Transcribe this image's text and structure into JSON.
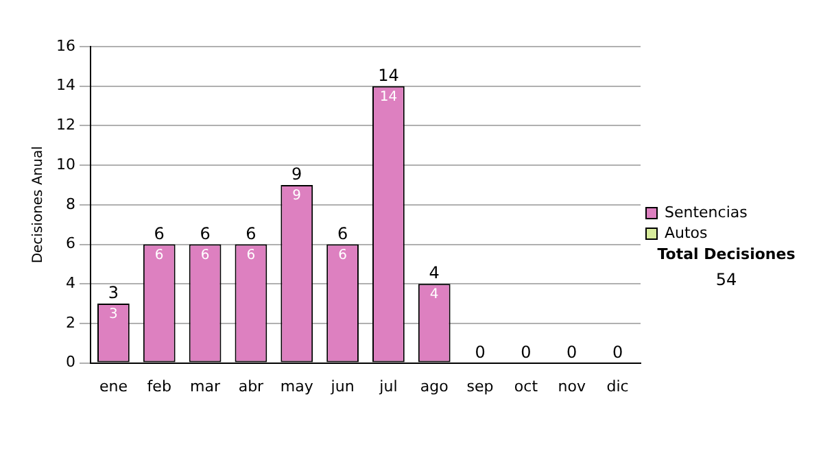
{
  "chart_data": {
    "type": "bar",
    "stacked": true,
    "ylabel": "Decisiones Anual",
    "categories": [
      "ene",
      "feb",
      "mar",
      "abr",
      "may",
      "jun",
      "jul",
      "ago",
      "sep",
      "oct",
      "nov",
      "dic"
    ],
    "series": [
      {
        "name": "Sentencias",
        "color": "#dd80c0",
        "values": [
          3,
          6,
          6,
          6,
          9,
          6,
          14,
          4,
          0,
          0,
          0,
          0
        ],
        "value_labels": [
          "3",
          "6",
          "6",
          "6",
          "9",
          "6",
          "14",
          "4",
          null,
          null,
          null,
          null
        ]
      },
      {
        "name": "Autos",
        "color": "#d8ec9c",
        "values": [
          0,
          0,
          0,
          0,
          0,
          0,
          0,
          0,
          0,
          0,
          0,
          0
        ]
      }
    ],
    "totals": [
      "3",
      "6",
      "6",
      "6",
      "9",
      "6",
      "14",
      "4",
      "0",
      "0",
      "0",
      "0"
    ],
    "ylim": [
      0,
      16
    ],
    "yticks": [
      0,
      2,
      4,
      6,
      8,
      10,
      12,
      14,
      16
    ],
    "grid": "y",
    "legend": "right",
    "annotations": [
      "Total Decisiones",
      "54"
    ]
  }
}
